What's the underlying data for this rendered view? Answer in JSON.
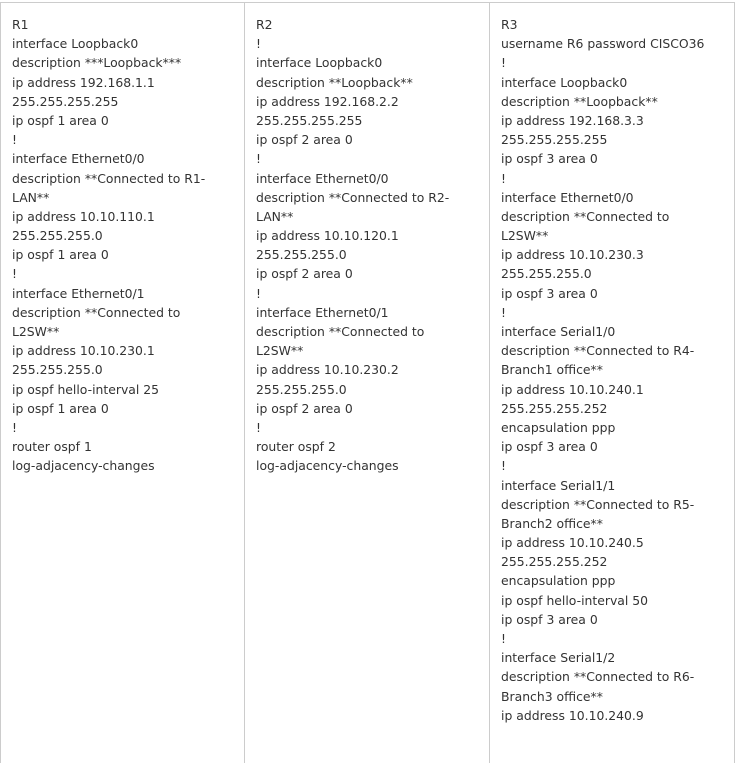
{
  "columns": [
    {
      "lines": [
        "R1",
        "interface Loopback0",
        "description ***Loopback***",
        "ip address 192.168.1.1",
        "255.255.255.255",
        "ip ospf 1 area 0",
        "!",
        "interface Ethernet0/0",
        "description **Connected to R1-",
        "LAN**",
        "ip address 10.10.110.1",
        "255.255.255.0",
        "ip ospf 1 area 0",
        "!",
        "interface Ethernet0/1",
        "description **Connected to",
        "L2SW**",
        "ip address 10.10.230.1",
        "255.255.255.0",
        "ip ospf hello-interval 25",
        "ip ospf 1 area 0",
        "!",
        "router ospf 1",
        "log-adjacency-changes"
      ]
    },
    {
      "lines": [
        "R2",
        "!",
        "interface Loopback0",
        "description **Loopback**",
        "ip address 192.168.2.2",
        "255.255.255.255",
        "ip ospf 2 area 0",
        "!",
        "interface Ethernet0/0",
        "description **Connected to R2-",
        "LAN**",
        "ip address 10.10.120.1",
        "255.255.255.0",
        "ip ospf 2 area 0",
        "!",
        "interface Ethernet0/1",
        "description **Connected to",
        "L2SW**",
        "ip address 10.10.230.2",
        "255.255.255.0",
        "ip ospf 2 area 0",
        "!",
        "router ospf 2",
        "log-adjacency-changes"
      ]
    },
    {
      "lines": [
        "R3",
        "username R6 password CISCO36",
        "!",
        "interface Loopback0",
        "description **Loopback**",
        "ip address 192.168.3.3",
        "255.255.255.255",
        "ip ospf 3 area 0",
        "!",
        "interface Ethernet0/0",
        "description **Connected to",
        "L2SW**",
        "ip address 10.10.230.3",
        "255.255.255.0",
        "ip ospf 3 area 0",
        "!",
        "interface Serial1/0",
        "description **Connected to R4-",
        "Branch1 office**",
        "ip address 10.10.240.1",
        "255.255.255.252",
        "encapsulation ppp",
        "ip ospf 3 area 0",
        "!",
        "interface Serial1/1",
        "description **Connected to R5-",
        "Branch2 office**",
        "ip address 10.10.240.5",
        "255.255.255.252",
        "encapsulation ppp",
        "ip ospf hello-interval 50",
        "ip ospf 3 area 0",
        "!",
        "interface Serial1/2",
        "description **Connected to R6-",
        "Branch3 office**",
        "ip address 10.10.240.9"
      ]
    }
  ]
}
